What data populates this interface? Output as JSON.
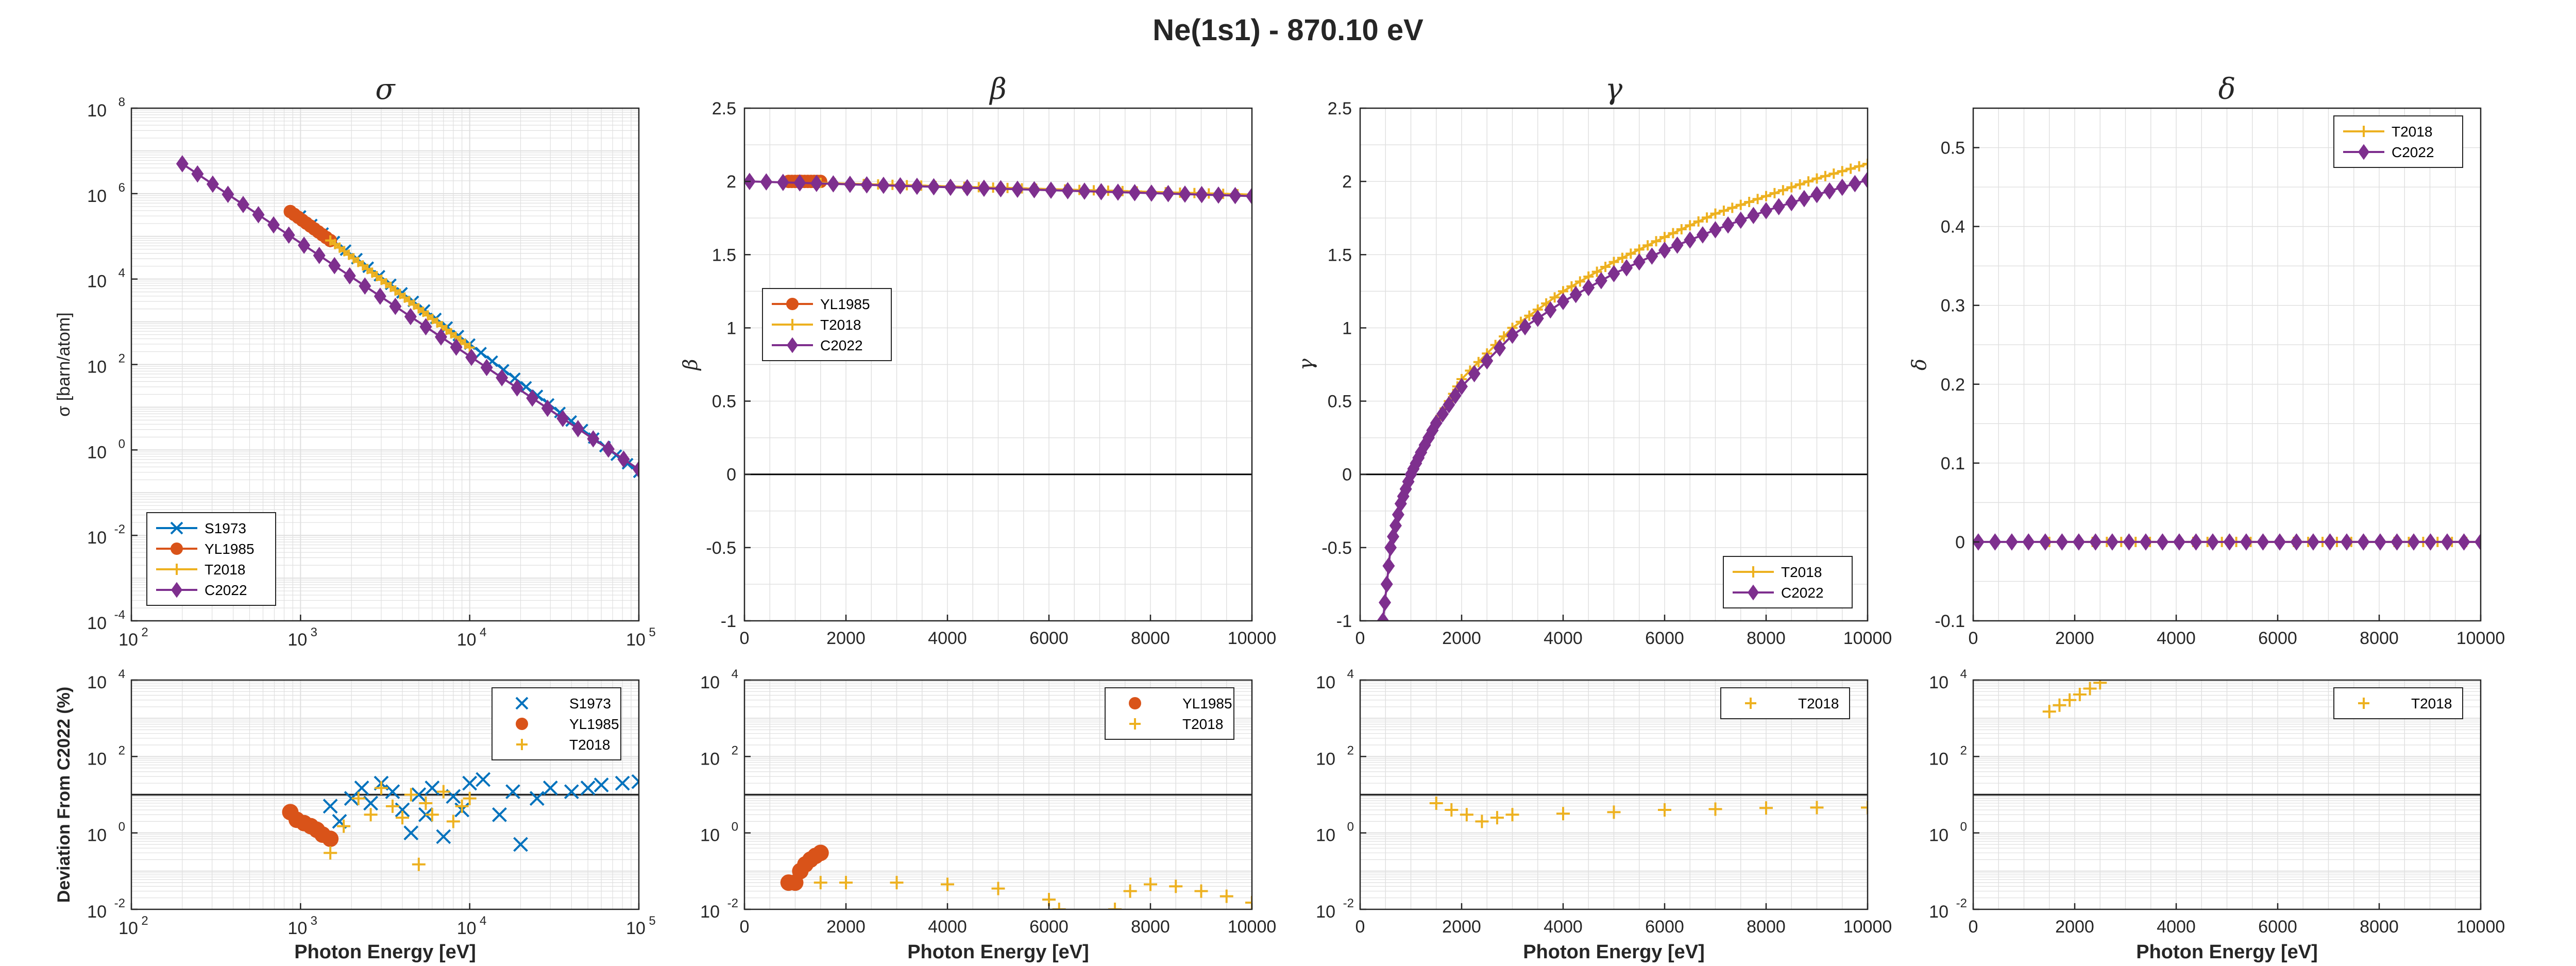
{
  "figure_title": "Ne(1s1) - 870.10 eV",
  "colors": {
    "S1973": "#0072BD",
    "YL1985": "#D95319",
    "T2018": "#EDB120",
    "C2022": "#7E2F8E",
    "axis": "#262626",
    "grid": "#dfdfdf",
    "zeroline": "#000000"
  },
  "chart_data": [
    {
      "id": "sigma",
      "type": "line",
      "title": "σ",
      "xlabel": "",
      "ylabel": "σ [barn/atom]",
      "xscale": "log",
      "yscale": "log",
      "xlim": [
        100,
        100000
      ],
      "ylim": [
        0.0001,
        100000000
      ],
      "xticks": [
        100,
        1000,
        10000,
        100000
      ],
      "yticks": [
        0.0001,
        0.01,
        1,
        100,
        10000,
        1000000,
        100000000
      ],
      "legend": "bottom-left",
      "series": [
        {
          "name": "S1973",
          "marker": "x",
          "x": [
            1000,
            100000
          ],
          "y": [
            300000,
            0.3
          ]
        },
        {
          "name": "YL1985",
          "marker": "circle",
          "x": [
            870,
            1500
          ],
          "y": [
            380000,
            80000
          ]
        },
        {
          "name": "T2018",
          "marker": "plus",
          "x": [
            1500,
            10000
          ],
          "y": [
            80000,
            250
          ]
        },
        {
          "name": "C2022",
          "marker": "diamond",
          "x": [
            200,
            100000
          ],
          "y": [
            5000000,
            0.35
          ]
        }
      ]
    },
    {
      "id": "beta",
      "type": "line",
      "title": "β",
      "xlabel": "",
      "ylabel": "β",
      "xlim": [
        0,
        10000
      ],
      "ylim": [
        -1,
        2.5
      ],
      "xticks": [
        0,
        2000,
        4000,
        6000,
        8000,
        10000
      ],
      "yticks": [
        -1,
        -0.5,
        0,
        0.5,
        1,
        1.5,
        2,
        2.5
      ],
      "legend": "middle-left",
      "series": [
        {
          "name": "YL1985",
          "marker": "circle",
          "x": [
            870,
            1500
          ],
          "y": [
            2.0,
            2.0
          ]
        },
        {
          "name": "T2018",
          "marker": "plus",
          "x": [
            1500,
            10000
          ],
          "y": [
            1.99,
            1.91
          ]
        },
        {
          "name": "C2022",
          "marker": "diamond",
          "x": [
            100,
            10000
          ],
          "y": [
            2.0,
            1.9
          ]
        }
      ]
    },
    {
      "id": "gamma",
      "type": "line",
      "title": "γ",
      "xlabel": "",
      "ylabel": "γ",
      "xlim": [
        0,
        10000
      ],
      "ylim": [
        -1,
        2.5
      ],
      "xticks": [
        0,
        2000,
        4000,
        6000,
        8000,
        10000
      ],
      "yticks": [
        -1,
        -0.5,
        0,
        0.5,
        1,
        1.5,
        2,
        2.5
      ],
      "legend": "bottom-right",
      "series": [
        {
          "name": "T2018",
          "marker": "plus",
          "x": [
            1500,
            2000,
            3000,
            4000,
            5000,
            6000,
            7000,
            8000,
            9000,
            10000
          ],
          "y": [
            0.35,
            0.65,
            1.0,
            1.25,
            1.45,
            1.62,
            1.78,
            1.9,
            2.02,
            2.12
          ]
        },
        {
          "name": "C2022",
          "marker": "diamond",
          "x": [
            450,
            600,
            800,
            1000,
            1200,
            1500,
            2000,
            3000,
            4000,
            5000,
            6000,
            7000,
            8000,
            9000,
            10000
          ],
          "y": [
            -1.0,
            -0.5,
            -0.2,
            0.0,
            0.15,
            0.35,
            0.6,
            0.95,
            1.18,
            1.37,
            1.53,
            1.67,
            1.8,
            1.91,
            2.01
          ]
        }
      ]
    },
    {
      "id": "delta",
      "type": "line",
      "title": "δ",
      "xlabel": "",
      "ylabel": "δ",
      "xlim": [
        0,
        10000
      ],
      "ylim": [
        -0.1,
        0.55
      ],
      "xticks": [
        0,
        2000,
        4000,
        6000,
        8000,
        10000
      ],
      "yticks": [
        -0.1,
        0,
        0.1,
        0.2,
        0.3,
        0.4,
        0.5
      ],
      "legend": "top-right",
      "series": [
        {
          "name": "T2018",
          "marker": "plus",
          "x": [
            1500,
            10000
          ],
          "y": [
            0,
            0
          ]
        },
        {
          "name": "C2022",
          "marker": "diamond",
          "x": [
            100,
            10000
          ],
          "y": [
            0,
            0
          ]
        }
      ]
    },
    {
      "id": "dev-sigma",
      "type": "scatter",
      "title": "",
      "xlabel": "Photon Energy [eV]",
      "ylabel": "Deviation From C2022 (%)",
      "xscale": "log",
      "yscale": "log",
      "xlim": [
        100,
        100000
      ],
      "ylim": [
        0.01,
        10000
      ],
      "xticks": [
        100,
        1000,
        10000,
        100000
      ],
      "yticks": [
        0.01,
        1,
        100,
        10000
      ],
      "reference_line": 10,
      "legend": "top-right",
      "series": [
        {
          "name": "S1973",
          "marker": "x",
          "x": [
            1500,
            1700,
            2000,
            2300,
            2600,
            3000,
            3500,
            4000,
            4500,
            5000,
            5500,
            6000,
            7000,
            8000,
            9000,
            10000,
            12000,
            15000,
            18000,
            20000,
            25000,
            30000,
            40000,
            50000,
            60000,
            80000,
            100000
          ],
          "y": [
            5,
            2,
            8,
            15,
            6,
            20,
            12,
            4,
            1,
            10,
            3,
            15,
            0.8,
            9,
            4,
            20,
            25,
            3,
            12,
            0.5,
            8,
            15,
            12,
            15,
            18,
            20,
            22
          ]
        },
        {
          "name": "YL1985",
          "marker": "circle",
          "x": [
            870,
            950,
            1050,
            1150,
            1250,
            1350,
            1500
          ],
          "y": [
            3.5,
            2.2,
            1.8,
            1.5,
            1.2,
            0.9,
            0.7
          ]
        },
        {
          "name": "T2018",
          "marker": "plus",
          "x": [
            1500,
            1800,
            2200,
            2600,
            3000,
            3500,
            4000,
            4500,
            5000,
            5500,
            6000,
            7000,
            8000,
            9000,
            10000
          ],
          "y": [
            0.3,
            1.5,
            8,
            3,
            15,
            5,
            2.5,
            10,
            0.15,
            6,
            3,
            12,
            2,
            5,
            8
          ]
        }
      ]
    },
    {
      "id": "dev-beta",
      "type": "scatter",
      "title": "",
      "xlabel": "Photon Energy [eV]",
      "ylabel": "",
      "yscale": "log",
      "xlim": [
        0,
        10000
      ],
      "ylim": [
        0.01,
        10000
      ],
      "xticks": [
        0,
        2000,
        4000,
        6000,
        8000,
        10000
      ],
      "yticks": [
        0.01,
        1,
        100,
        10000
      ],
      "reference_line": 10,
      "legend": "top-right",
      "series": [
        {
          "name": "YL1985",
          "marker": "circle",
          "x": [
            870,
            1000,
            1100,
            1200,
            1300,
            1400,
            1500
          ],
          "y": [
            0.05,
            0.05,
            0.1,
            0.15,
            0.2,
            0.25,
            0.3
          ]
        },
        {
          "name": "T2018",
          "marker": "plus",
          "x": [
            1500,
            2000,
            3000,
            4000,
            5000,
            6000,
            6200,
            7300,
            7600,
            8000,
            8500,
            9000,
            9500,
            10000
          ],
          "y": [
            0.05,
            0.05,
            0.05,
            0.045,
            0.035,
            0.018,
            0.01,
            0.01,
            0.03,
            0.045,
            0.04,
            0.03,
            0.022,
            0.015
          ]
        }
      ]
    },
    {
      "id": "dev-gamma",
      "type": "scatter",
      "title": "",
      "xlabel": "Photon Energy [eV]",
      "ylabel": "",
      "yscale": "log",
      "xlim": [
        0,
        10000
      ],
      "ylim": [
        0.01,
        10000
      ],
      "xticks": [
        0,
        2000,
        4000,
        6000,
        8000,
        10000
      ],
      "yticks": [
        0.01,
        1,
        100,
        10000
      ],
      "reference_line": 10,
      "legend": "top-right",
      "series": [
        {
          "name": "T2018",
          "marker": "plus",
          "x": [
            1500,
            1800,
            2100,
            2400,
            2700,
            3000,
            4000,
            5000,
            6000,
            7000,
            8000,
            9000,
            10000
          ],
          "y": [
            6,
            4,
            3,
            2,
            2.5,
            3,
            3.2,
            3.5,
            4,
            4.2,
            4.5,
            4.6,
            4.6
          ]
        }
      ]
    },
    {
      "id": "dev-delta",
      "type": "scatter",
      "title": "",
      "xlabel": "Photon Energy [eV]",
      "ylabel": "",
      "yscale": "log",
      "xlim": [
        0,
        10000
      ],
      "ylim": [
        0.01,
        10000
      ],
      "xticks": [
        0,
        2000,
        4000,
        6000,
        8000,
        10000
      ],
      "yticks": [
        0.01,
        1,
        100,
        10000
      ],
      "reference_line": 10,
      "legend": "top-right",
      "series": [
        {
          "name": "T2018",
          "marker": "plus",
          "x": [
            1500,
            1700,
            1900,
            2100,
            2300,
            2500
          ],
          "y": [
            1500,
            2200,
            3000,
            4200,
            6000,
            8500
          ]
        }
      ]
    }
  ]
}
